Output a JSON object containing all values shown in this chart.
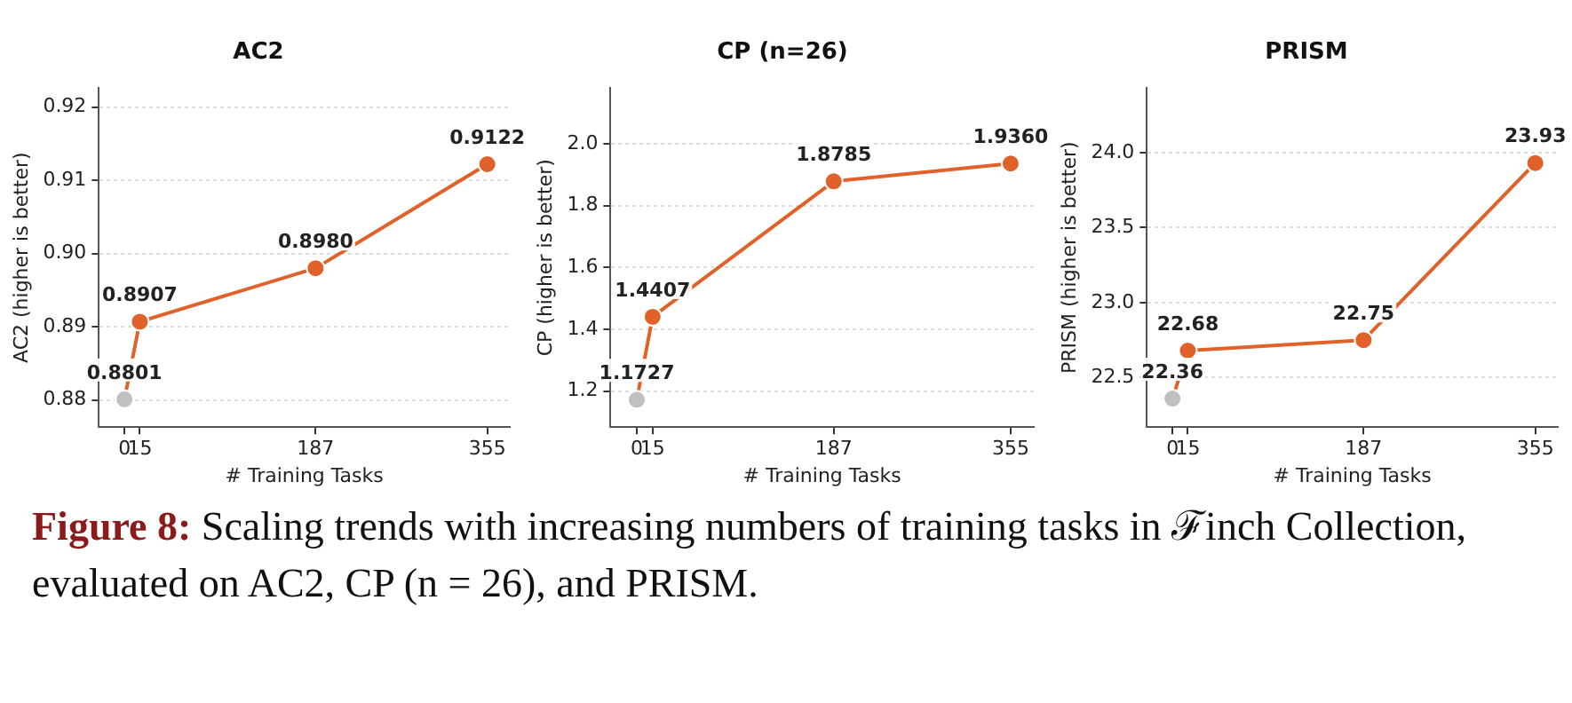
{
  "chart_data": [
    {
      "type": "line",
      "title": "AC2",
      "xlabel": "# Training Tasks",
      "ylabel": "AC2 (higher is better)",
      "x": [
        0,
        15,
        187,
        355
      ],
      "xlim": [
        -25,
        377
      ],
      "xticks": [
        0,
        15,
        187,
        355
      ],
      "ylim": [
        0.8763,
        0.9226
      ],
      "yticks": [
        0.88,
        0.89,
        {
          "value": 0.9,
          "label": "0.90"
        },
        0.91,
        0.92
      ],
      "grid": "y",
      "legend": false,
      "marker": "circle",
      "series": [
        {
          "color": "#e0622a",
          "colors": [
            "#c0c0c0",
            "#e0622a",
            "#e0622a",
            "#e0622a"
          ],
          "values": [
            0.8801,
            0.8907,
            0.898,
            0.9122
          ],
          "value_labels": [
            "0.8801",
            "0.8907",
            "0.8980",
            "0.9122"
          ]
        }
      ]
    },
    {
      "type": "line",
      "title": "CP (n=26)",
      "xlabel": "# Training Tasks",
      "ylabel": "CP (higher is better)",
      "x": [
        0,
        15,
        187,
        355
      ],
      "xlim": [
        -25,
        377
      ],
      "xticks": [
        0,
        15,
        187,
        355
      ],
      "ylim": [
        1.084,
        2.18
      ],
      "yticks": [
        1.2,
        1.4,
        1.6,
        1.8,
        {
          "value": 2,
          "label": "2.0"
        }
      ],
      "grid": "y",
      "legend": false,
      "marker": "circle",
      "series": [
        {
          "color": "#e0622a",
          "colors": [
            "#c0c0c0",
            "#e0622a",
            "#e0622a",
            "#e0622a"
          ],
          "values": [
            1.1727,
            1.4407,
            1.8785,
            1.936
          ],
          "value_labels": [
            "1.1727",
            "1.4407",
            "1.8785",
            "1.9360"
          ]
        }
      ]
    },
    {
      "type": "line",
      "title": "PRISM",
      "xlabel": "# Training Tasks",
      "ylabel": "PRISM (higher is better)",
      "x": [
        0,
        15,
        187,
        355
      ],
      "xlim": [
        -25,
        377
      ],
      "xticks": [
        0,
        15,
        187,
        355
      ],
      "ylim": [
        22.17,
        24.43
      ],
      "yticks": [
        22.5,
        {
          "value": 23,
          "label": "23.0"
        },
        23.5,
        {
          "value": 24,
          "label": "24.0"
        }
      ],
      "grid": "y",
      "legend": false,
      "marker": "circle",
      "series": [
        {
          "color": "#e0622a",
          "colors": [
            "#c0c0c0",
            "#e0622a",
            "#e0622a",
            "#e0622a"
          ],
          "values": [
            22.36,
            22.68,
            22.75,
            23.93
          ],
          "value_labels": [
            "22.36",
            "22.68",
            "22.75",
            "23.93"
          ]
        }
      ]
    },
    {
      "type": "other",
      "annotations": [
        "Figure 8:",
        "Scaling trends with increasing numbers of training tasks in ℱinch Collection, evaluated on AC2, CP (n = 26), and PRISM."
      ]
    }
  ]
}
